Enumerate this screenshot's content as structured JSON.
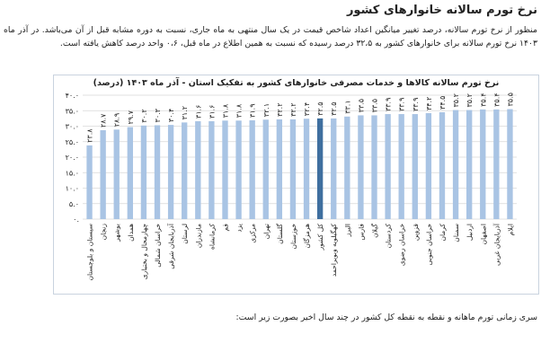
{
  "section": {
    "title": "نرخ تورم سالانه خانوارهای کشور",
    "intro": "منظور از نرخ تورم سالانه، درصد تغییر میانگین اعداد شاخص قیمت در یک سال منتهی به ماه جاری، نسبت به دوره مشابه قبل از آن می‌باشد. در آذر ماه ۱۴۰۳ نرخ تورم سالانه برای خانوارهای کشور به ۳۲،۵ درصد رسیده که نسبت به همین اطلاع در ماه قبل، ۰،۶ واحد درصد کاهش یافته است.",
    "footer": "سری زمانی تورم ماهانه و نقطه به نقطه کل کشور در چند سال اخیر بصورت زیر است:"
  },
  "colors": {
    "bar": "#a9c4e4",
    "highlight_bar": "#3f6f9f",
    "grid": "#d8d8d8",
    "text": "#222222"
  },
  "chart_data": {
    "type": "bar",
    "title": "نرخ تورم سالانه کالاها و خدمات مصرفی خانوارهای کشور به تفکیک استان - آذر ماه ۱۴۰۳ (درصد)",
    "xlabel": "",
    "ylabel": "",
    "ylim": [
      0,
      40
    ],
    "yticks": [
      0,
      5,
      10,
      15,
      20,
      25,
      30,
      35,
      40
    ],
    "ytick_labels": [
      "۰.",
      "۵.۰",
      "۱۰.۰",
      "۱۵.۰",
      "۲۰.۰",
      "۲۵.۰",
      "۳۰.۰",
      "۳۵.۰",
      "۴۰.۰"
    ],
    "grid": true,
    "legend": "none",
    "highlight_category": "کل کشور",
    "categories": [
      "سیستان و بلوچستان",
      "زنجان",
      "بوشهر",
      "همدان",
      "چهارمحال و بختیاری",
      "خراسان شمالی",
      "آذربایجان شرقی",
      "لرستان",
      "مازندران",
      "کرمانشاه",
      "قم",
      "یزد",
      "مرکزی",
      "تهران",
      "گلستان",
      "خوزستان",
      "هرمزگان",
      "کل کشور",
      "کهگیلویه وبویراحمد",
      "البرز",
      "فارس",
      "گیلان",
      "کردستان",
      "خراسان رضوی",
      "قزوین",
      "خراسان جنوبی",
      "کرمان",
      "سمنان",
      "اردبیل",
      "اصفهان",
      "آذربایجان غربی",
      "ایلام"
    ],
    "values": [
      23.8,
      28.7,
      28.9,
      29.7,
      30.2,
      30.3,
      30.4,
      31.2,
      31.6,
      31.6,
      31.8,
      31.8,
      31.9,
      32.1,
      32.2,
      32.2,
      32.4,
      32.5,
      32.5,
      33.1,
      33.5,
      33.5,
      33.9,
      33.9,
      33.9,
      34.2,
      34.5,
      35.2,
      35.2,
      35.4,
      35.4,
      35.5
    ],
    "value_labels": [
      "۲۳.۸",
      "۲۸.۷",
      "۲۸.۹",
      "۲۹.۷",
      "۳۰.۲",
      "۳۰.۳",
      "۳۰.۴",
      "۳۱.۲",
      "۳۱.۶",
      "۳۱.۶",
      "۳۱.۸",
      "۳۱.۸",
      "۳۱.۹",
      "۳۲.۱",
      "۳۲.۲",
      "۳۲.۲",
      "۳۲.۴",
      "۳۲.۵",
      "۳۲.۵",
      "۳۳.۱",
      "۳۳.۵",
      "۳۳.۵",
      "۳۳.۹",
      "۳۳.۹",
      "۳۳.۹",
      "۳۴.۲",
      "۳۴.۵",
      "۳۵.۲",
      "۳۵.۲",
      "۳۵.۴",
      "۳۵.۴",
      "۳۵.۵"
    ]
  }
}
